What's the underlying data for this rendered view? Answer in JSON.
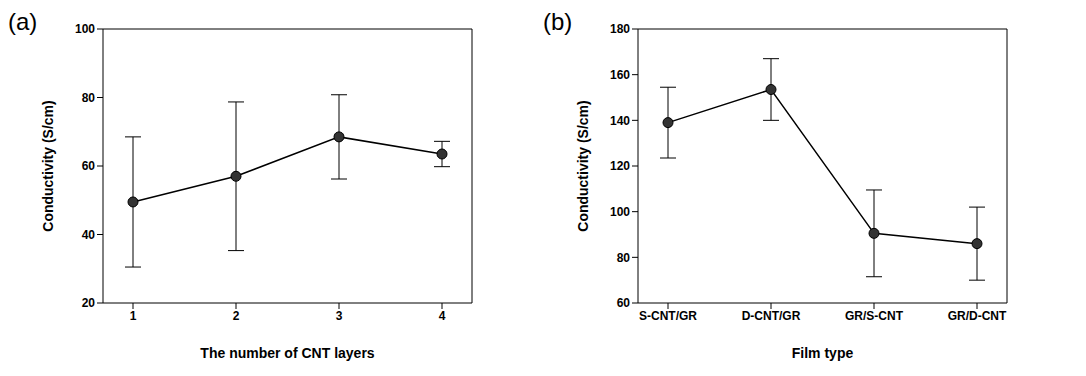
{
  "chart_data": [
    {
      "type": "line",
      "title": "(a)",
      "x_label": "The number of CNT layers",
      "y_label": "Conductivity (S/cm)",
      "categories": [
        "1",
        "2",
        "3",
        "4"
      ],
      "values": [
        49.5,
        57,
        68.5,
        63.5
      ],
      "errors": [
        19,
        21.7,
        12.3,
        3.7
      ],
      "ylim": [
        20,
        100
      ],
      "yticks": [
        20,
        40,
        60,
        80,
        100
      ],
      "color": "#000000",
      "marker": "circle"
    },
    {
      "type": "line",
      "title": "(b)",
      "x_label": "Film type",
      "y_label": "Conductivity (S/cm)",
      "categories": [
        "S-CNT/GR",
        "D-CNT/GR",
        "GR/S-CNT",
        "GR/D-CNT"
      ],
      "values": [
        139,
        153.5,
        90.5,
        86
      ],
      "errors": [
        15.5,
        13.5,
        19,
        16
      ],
      "ylim": [
        60,
        180
      ],
      "yticks": [
        60,
        80,
        100,
        120,
        140,
        160,
        180
      ],
      "color": "#000000",
      "marker": "circle"
    }
  ]
}
